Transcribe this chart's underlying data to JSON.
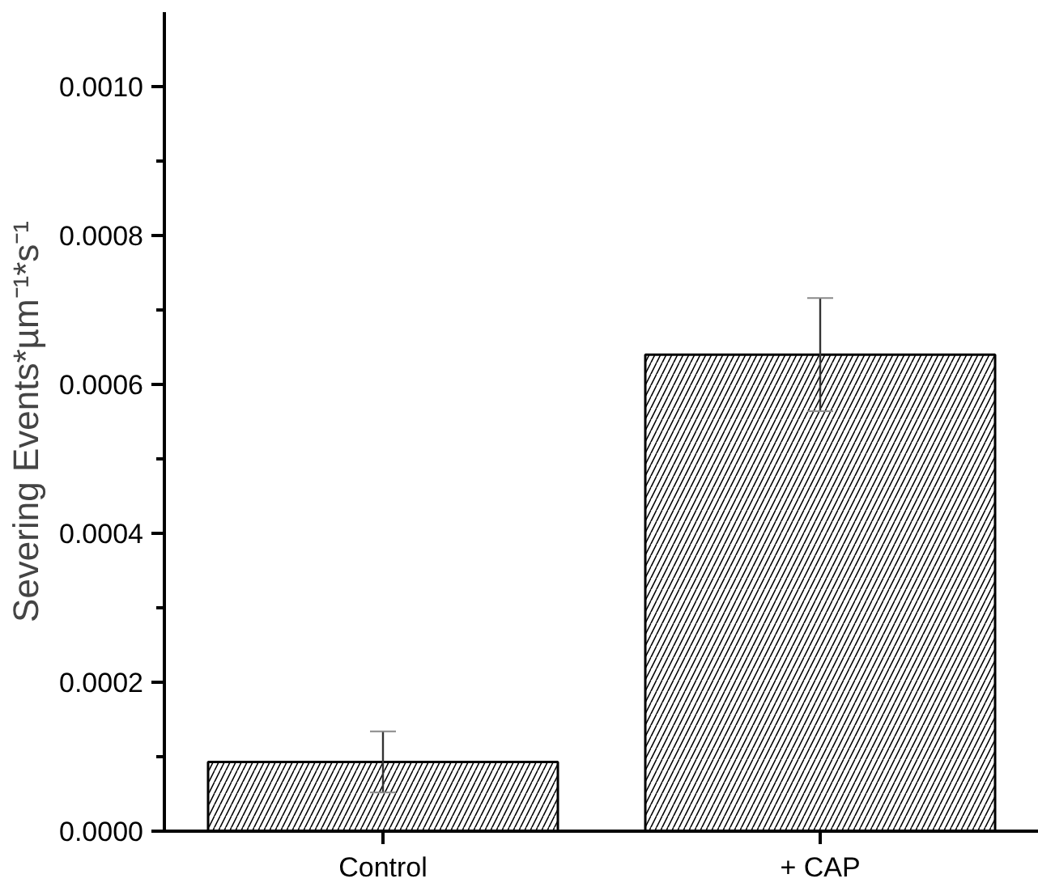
{
  "chart_data": {
    "type": "bar",
    "ylabel": "Severing Events*µm⁻¹*s⁻¹",
    "categories": [
      "Control",
      "+ CAP"
    ],
    "values": [
      9.3e-05,
      0.00064
    ],
    "errors": [
      4.1e-05,
      7.6e-05
    ],
    "color": "#000000",
    "ylim": [
      0,
      0.0011
    ],
    "yticks": [
      {
        "value": 0,
        "label": "0.0000"
      },
      {
        "value": 0.0001,
        "label": null
      },
      {
        "value": 0.0002,
        "label": "0.0002"
      },
      {
        "value": 0.0003,
        "label": null
      },
      {
        "value": 0.0004,
        "label": "0.0004"
      },
      {
        "value": 0.0005,
        "label": null
      },
      {
        "value": 0.0006,
        "label": "0.0006"
      },
      {
        "value": 0.0007,
        "label": null
      },
      {
        "value": 0.0008,
        "label": "0.0008"
      },
      {
        "value": 0.0009,
        "label": null
      },
      {
        "value": 0.001,
        "label": "0.0010"
      }
    ],
    "grid": false
  }
}
